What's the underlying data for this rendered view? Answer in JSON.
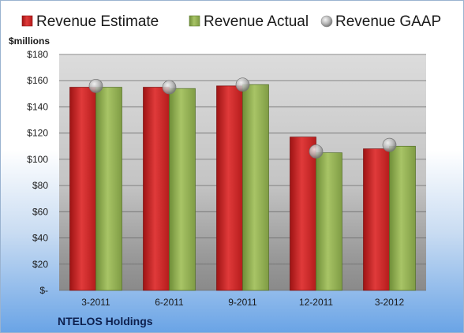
{
  "chart_data": {
    "type": "bar",
    "unit_label": "$millions",
    "company": "NTELOS Holdings",
    "categories": [
      "3-2011",
      "6-2011",
      "9-2011",
      "12-2011",
      "3-2012"
    ],
    "ylim": [
      0,
      180
    ],
    "yticks": [
      0,
      20,
      40,
      60,
      80,
      100,
      120,
      140,
      160,
      180
    ],
    "ytick_labels": [
      "$-",
      "$20",
      "$40",
      "$60",
      "$80",
      "$100",
      "$120",
      "$140",
      "$160",
      "$180"
    ],
    "grid": true,
    "legend_position": "top",
    "series": [
      {
        "name": "Revenue Estimate",
        "type": "bar",
        "color": "#d42a2a",
        "values": [
          155,
          155,
          156,
          117,
          108
        ]
      },
      {
        "name": "Revenue Actual",
        "type": "bar",
        "color": "#8fae4e",
        "values": [
          155,
          154,
          157,
          105,
          110
        ]
      },
      {
        "name": "Revenue GAAP",
        "type": "marker",
        "color": "#b8b8b8",
        "values": [
          156,
          155,
          157,
          106,
          111
        ]
      }
    ]
  }
}
